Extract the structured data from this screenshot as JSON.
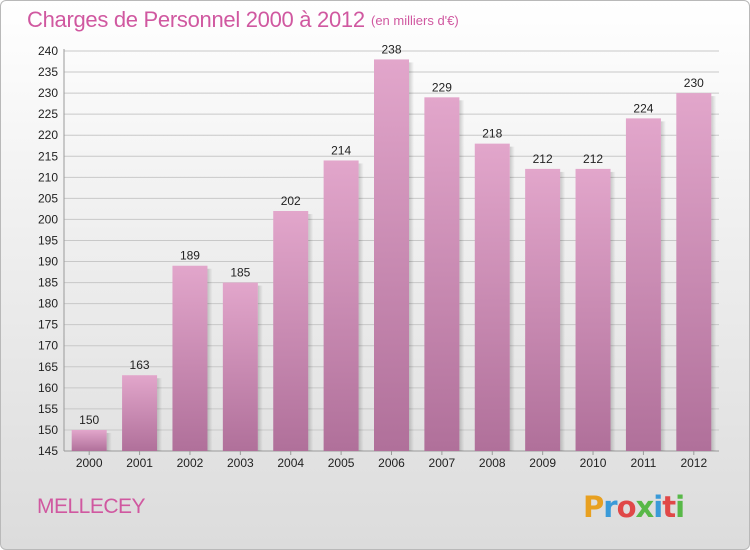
{
  "header": {
    "title": "Charges de Personnel 2000 à 2012",
    "subtitle": "(en milliers d'€)"
  },
  "footer": {
    "place": "MELLECEY",
    "logo_text": "Proxiti",
    "logo_colors": [
      "#e8a020",
      "#3a9ad8",
      "#e04848",
      "#58b848",
      "#3a9ad8",
      "#e04848",
      "#58b848"
    ]
  },
  "colors": {
    "accent": "#d058a0",
    "bar_top": "#e2a6cb",
    "bar_bottom": "#b0709a",
    "grid": "#c8c8c8"
  },
  "chart_data": {
    "type": "bar",
    "title": "Charges de Personnel 2000 à 2012",
    "subtitle": "(en milliers d'€)",
    "categories": [
      "2000",
      "2001",
      "2002",
      "2003",
      "2004",
      "2005",
      "2006",
      "2007",
      "2008",
      "2009",
      "2010",
      "2011",
      "2012"
    ],
    "values": [
      150,
      163,
      189,
      185,
      202,
      214,
      238,
      229,
      218,
      212,
      212,
      224,
      230
    ],
    "ylim": [
      145,
      240
    ],
    "ytick_step": 5,
    "grid": true,
    "legend": false,
    "xlabel": "",
    "ylabel": ""
  }
}
